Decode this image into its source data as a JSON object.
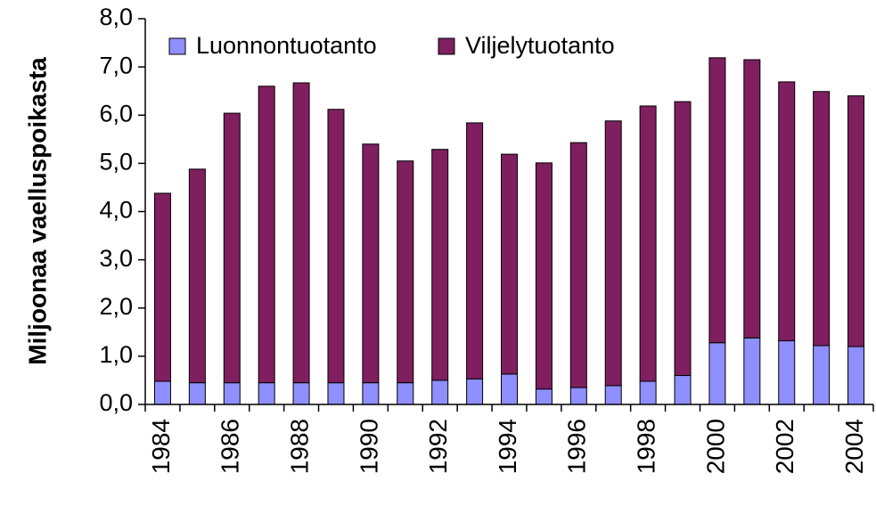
{
  "chart_data": {
    "type": "stacked_bar",
    "ylabel": "Miljoonaa vaelluspoikasta",
    "categories": [
      "1984",
      null,
      "1986",
      null,
      "1988",
      null,
      "1990",
      null,
      "1992",
      null,
      "1994",
      null,
      "1996",
      null,
      "1998",
      null,
      "2000",
      null,
      "2002",
      null,
      "2004"
    ],
    "series": [
      {
        "name": "Luonnontuotanto",
        "color": "#8f8fff",
        "values": [
          0.48,
          0.45,
          0.45,
          0.45,
          0.45,
          0.45,
          0.45,
          0.45,
          0.5,
          0.53,
          0.63,
          0.32,
          0.35,
          0.39,
          0.48,
          0.6,
          1.28,
          1.38,
          1.32,
          1.22,
          1.2
        ]
      },
      {
        "name": "Viljelytuotanto",
        "color": "#7f1f5f",
        "values": [
          3.9,
          4.43,
          5.59,
          6.15,
          6.22,
          5.67,
          4.95,
          4.6,
          4.79,
          5.31,
          4.56,
          4.69,
          5.08,
          5.49,
          5.71,
          5.68,
          5.91,
          5.77,
          5.37,
          5.27,
          5.2
        ]
      }
    ],
    "ylim": [
      0,
      8
    ],
    "yticks": [
      {
        "value": 0,
        "label": "0,0"
      },
      {
        "value": 1,
        "label": "1,0"
      },
      {
        "value": 2,
        "label": "2,0"
      },
      {
        "value": 3,
        "label": "3,0"
      },
      {
        "value": 4,
        "label": "4,0"
      },
      {
        "value": 5,
        "label": "5,0"
      },
      {
        "value": 6,
        "label": "6,0"
      },
      {
        "value": 7,
        "label": "7,0"
      },
      {
        "value": 8,
        "label": "8,0"
      }
    ],
    "legend": "top-left"
  }
}
